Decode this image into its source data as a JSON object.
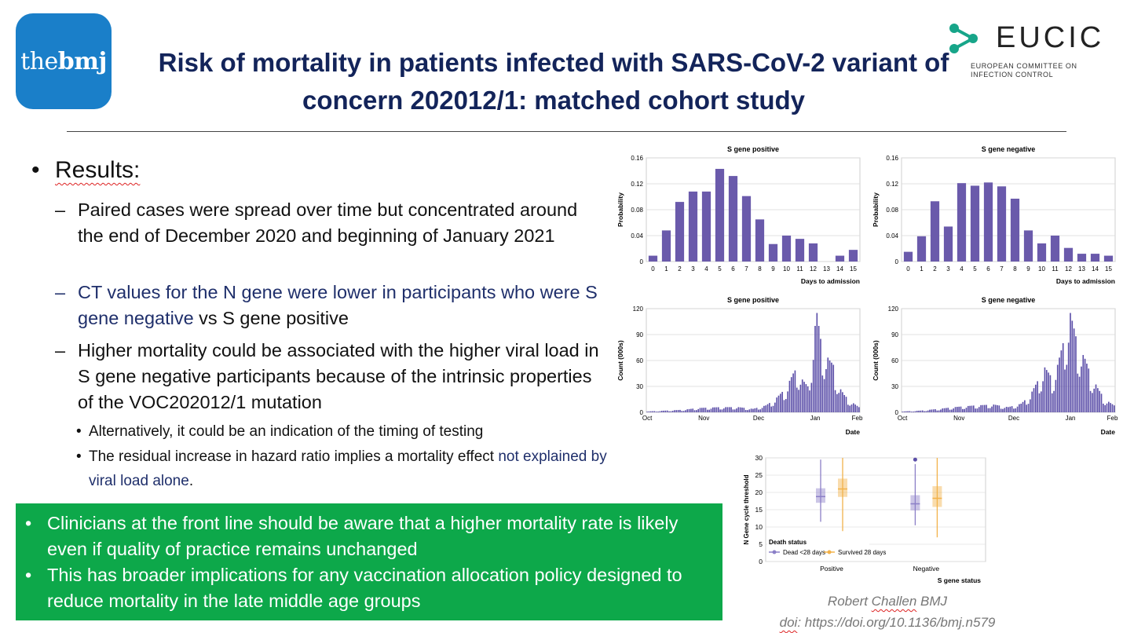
{
  "logo_left": {
    "part1": "the",
    "part2": "bmj"
  },
  "title": "Risk of mortality in patients infected with SARS-CoV-2 variant of concern 202012/1: matched cohort study",
  "logo_right": {
    "name": "EUCIC",
    "sub1": "EUROPEAN COMMITTEE ON",
    "sub2": "INFECTION CONTROL",
    "color": "#17a589"
  },
  "results": {
    "heading": "Results:",
    "items": [
      {
        "text": "Paired cases were spread over time but concentrated around the end of December 2020 and beginning of January 2021"
      },
      {
        "text": "CT values for the N gene were lower in participants who were S gene negative",
        "suffix": " vs S gene positive"
      },
      {
        "text": " Higher mortality could be associated with the higher viral load in S gene negative participants because of the intrinsic properties of the  VOC202012/1 mutation"
      }
    ],
    "subitems": [
      {
        "text": "Alternatively, it could be an indication of the timing of testing"
      },
      {
        "text": "The residual increase in hazard ratio implies a mortality effect ",
        "highlight": "not explained by viral load alone",
        "suffix": "."
      }
    ]
  },
  "conclusions": [
    "Clinicians at the front line should be aware that a higher mortality rate is likely even if quality of practice remains unchanged",
    "This has broader implications for any vaccination allocation policy designed to reduce mortality in the late middle age groups"
  ],
  "credit": {
    "author": "Robert ",
    "author2": "Challen",
    "journal": " BMJ",
    "doi_label": "doi",
    "doi": ": https://doi.org/10.1136/bmj.n579"
  },
  "chart_data": [
    {
      "type": "bar",
      "title": "S gene positive",
      "xlabel": "Days to admission",
      "ylabel": "Probability",
      "ylim": [
        0,
        0.16
      ],
      "yticks": [
        "0",
        "0.04",
        "0.08",
        "0.12",
        "0.16"
      ],
      "categories": [
        "0",
        "1",
        "2",
        "3",
        "4",
        "5",
        "6",
        "7",
        "8",
        "9",
        "10",
        "11",
        "12",
        "13",
        "14",
        "15"
      ],
      "values": [
        0.009,
        0.048,
        0.092,
        0.108,
        0.108,
        0.143,
        0.132,
        0.101,
        0.065,
        0.027,
        0.04,
        0.035,
        0.028,
        0.0,
        0.009,
        0.018
      ],
      "color": "#6a5aab"
    },
    {
      "type": "bar",
      "title": "S gene negative",
      "xlabel": "Days to admission",
      "ylabel": "Probability",
      "ylim": [
        0,
        0.16
      ],
      "yticks": [
        "0",
        "0.04",
        "0.08",
        "0.12",
        "0.16"
      ],
      "categories": [
        "0",
        "1",
        "2",
        "3",
        "4",
        "5",
        "6",
        "7",
        "8",
        "9",
        "10",
        "11",
        "12",
        "13",
        "14",
        "15"
      ],
      "values": [
        0.015,
        0.039,
        0.093,
        0.054,
        0.121,
        0.117,
        0.122,
        0.116,
        0.097,
        0.048,
        0.028,
        0.04,
        0.021,
        0.012,
        0.012,
        0.009
      ],
      "color": "#6a5aab"
    },
    {
      "type": "bar",
      "title": "S gene positive",
      "xlabel": "Date",
      "ylabel": "Count (000s)",
      "ylim": [
        0,
        120
      ],
      "yticks": [
        "0",
        "30",
        "60",
        "90",
        "120"
      ],
      "xticks": [
        "Oct",
        "Nov",
        "Dec",
        "Jan",
        "Feb"
      ],
      "envelope": [
        [
          0,
          1
        ],
        [
          10,
          2
        ],
        [
          20,
          3
        ],
        [
          28,
          5
        ],
        [
          40,
          6
        ],
        [
          50,
          6
        ],
        [
          58,
          4
        ],
        [
          65,
          8
        ],
        [
          70,
          15
        ],
        [
          76,
          28
        ],
        [
          80,
          45
        ],
        [
          82,
          52
        ],
        [
          85,
          38
        ],
        [
          88,
          30
        ],
        [
          90,
          62
        ],
        [
          92,
          100
        ],
        [
          93,
          115
        ],
        [
          95,
          85
        ],
        [
          97,
          70
        ],
        [
          100,
          60
        ],
        [
          102,
          55
        ],
        [
          105,
          30
        ],
        [
          108,
          20
        ],
        [
          112,
          12
        ],
        [
          116,
          6
        ]
      ],
      "color": "#5b4ea8"
    },
    {
      "type": "bar",
      "title": "S gene negative",
      "xlabel": "Date",
      "ylabel": "Count (000s)",
      "ylim": [
        0,
        120
      ],
      "yticks": [
        "0",
        "30",
        "60",
        "90",
        "120"
      ],
      "xticks": [
        "Oct",
        "Nov",
        "Dec",
        "Jan",
        "Feb"
      ],
      "envelope": [
        [
          0,
          1
        ],
        [
          10,
          2
        ],
        [
          20,
          4
        ],
        [
          28,
          6
        ],
        [
          40,
          8
        ],
        [
          50,
          9
        ],
        [
          58,
          6
        ],
        [
          65,
          10
        ],
        [
          70,
          20
        ],
        [
          75,
          40
        ],
        [
          78,
          52
        ],
        [
          82,
          40
        ],
        [
          85,
          55
        ],
        [
          88,
          80
        ],
        [
          90,
          100
        ],
        [
          92,
          115
        ],
        [
          95,
          88
        ],
        [
          97,
          75
        ],
        [
          100,
          62
        ],
        [
          103,
          45
        ],
        [
          107,
          28
        ],
        [
          111,
          15
        ],
        [
          116,
          8
        ]
      ],
      "color": "#5b4ea8"
    },
    {
      "type": "box",
      "xlabel": "S gene status",
      "ylabel": "N Gene cycle threshold",
      "ylim": [
        0,
        30
      ],
      "yticks": [
        "0",
        "5",
        "10",
        "15",
        "20",
        "25",
        "30"
      ],
      "categories": [
        "Positive",
        "Negative"
      ],
      "legend_title": "Death status",
      "series": [
        {
          "name": "Dead <28 days",
          "color": "#8b7fc7",
          "boxes": [
            {
              "min": 11.5,
              "q1": 17,
              "median": 18.8,
              "q3": 21.2,
              "max": 29.5
            },
            {
              "min": 10.5,
              "q1": 14.8,
              "median": 16.7,
              "q3": 19.2,
              "max": 28.2,
              "outlier": 29.5
            }
          ]
        },
        {
          "name": "Survived 28 days",
          "color": "#f2b24a",
          "boxes": [
            {
              "min": 8.8,
              "q1": 18.7,
              "median": 21,
              "q3": 24,
              "max": 30
            },
            {
              "min": 7,
              "q1": 15.8,
              "median": 18.3,
              "q3": 21.8,
              "max": 30
            }
          ]
        }
      ]
    }
  ]
}
